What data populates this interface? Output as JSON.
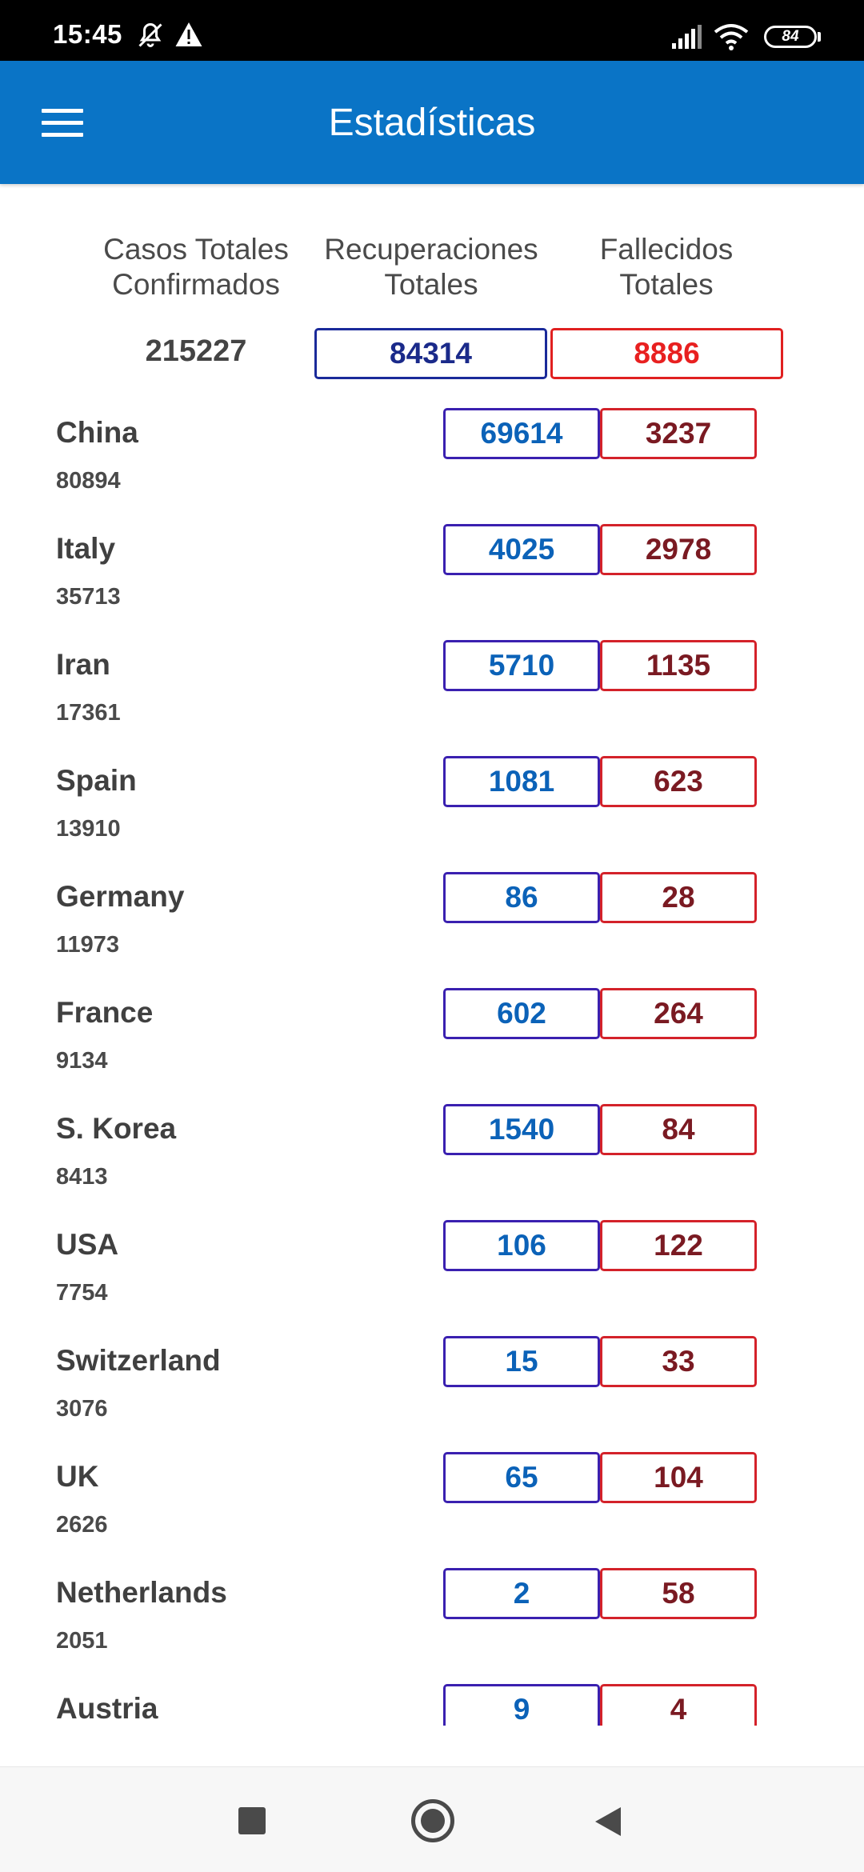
{
  "status_bar": {
    "time": "15:45",
    "battery": "84",
    "icons": [
      "bell-off-icon",
      "warning-icon",
      "signal-icon",
      "wifi-icon",
      "battery-icon"
    ]
  },
  "app_bar": {
    "title": "Estadísticas",
    "menu_icon": "hamburger-menu-icon",
    "color": "#0a74c6"
  },
  "summary": {
    "labels": {
      "confirmed": [
        "Casos Totales",
        "Confirmados"
      ],
      "recovered": [
        "Recuperaciones",
        "Totales"
      ],
      "deaths": [
        "Fallecidos",
        "Totales"
      ]
    },
    "total_confirmed": "215227",
    "total_recovered": "84314",
    "total_deaths": "8886"
  },
  "countries": [
    {
      "name": "China",
      "cases": "80894",
      "recovered": "69614",
      "deaths": "3237"
    },
    {
      "name": "Italy",
      "cases": "35713",
      "recovered": "4025",
      "deaths": "2978"
    },
    {
      "name": "Iran",
      "cases": "17361",
      "recovered": "5710",
      "deaths": "1135"
    },
    {
      "name": "Spain",
      "cases": "13910",
      "recovered": "1081",
      "deaths": "623"
    },
    {
      "name": "Germany",
      "cases": "11973",
      "recovered": "86",
      "deaths": "28"
    },
    {
      "name": "France",
      "cases": "9134",
      "recovered": "602",
      "deaths": "264"
    },
    {
      "name": "S. Korea",
      "cases": "8413",
      "recovered": "1540",
      "deaths": "84"
    },
    {
      "name": "USA",
      "cases": "7754",
      "recovered": "106",
      "deaths": "122"
    },
    {
      "name": "Switzerland",
      "cases": "3076",
      "recovered": "15",
      "deaths": "33"
    },
    {
      "name": "UK",
      "cases": "2626",
      "recovered": "65",
      "deaths": "104"
    },
    {
      "name": "Netherlands",
      "cases": "2051",
      "recovered": "2",
      "deaths": "58"
    },
    {
      "name": "Austria",
      "cases": "",
      "recovered": "9",
      "deaths": "4"
    }
  ],
  "nav_bar": {
    "icons": [
      "recents-square-icon",
      "home-circle-icon",
      "back-triangle-icon"
    ]
  }
}
